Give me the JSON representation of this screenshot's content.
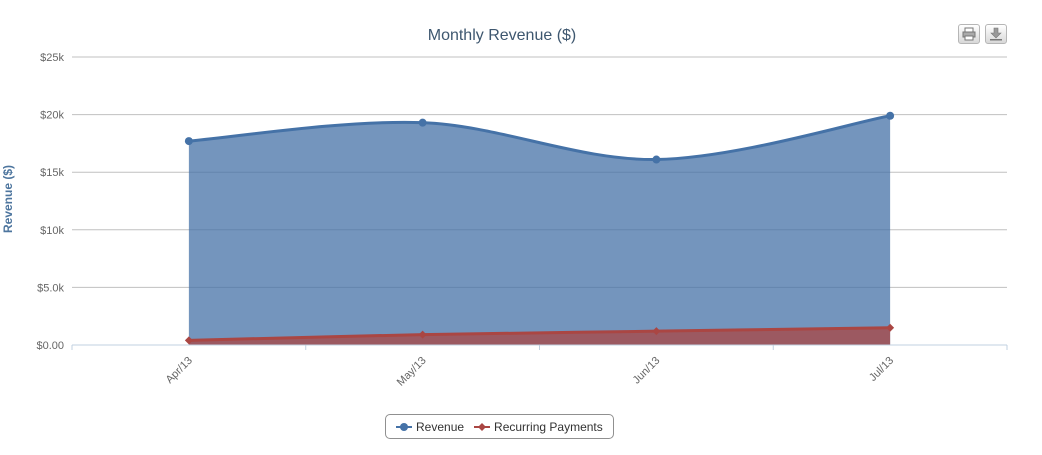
{
  "chart_data": {
    "type": "area",
    "title": "Monthly Revenue ($)",
    "xlabel": "",
    "ylabel": "Revenue ($)",
    "categories": [
      "Apr/13",
      "May/13",
      "Jun/13",
      "Jul/13"
    ],
    "ylim": [
      0,
      25000
    ],
    "yticks": [
      0,
      5000,
      10000,
      15000,
      20000,
      25000
    ],
    "ytick_labels": [
      "$0.00",
      "$5.0k",
      "$10k",
      "$15k",
      "$20k",
      "$25k"
    ],
    "grid": true,
    "legend_position": "bottom-center",
    "series": [
      {
        "name": "Revenue",
        "values": [
          17700,
          19300,
          16100,
          19900
        ],
        "color": "#4572A7",
        "marker": "circle"
      },
      {
        "name": "Recurring Payments",
        "values": [
          400,
          900,
          1200,
          1500
        ],
        "color": "#AA4643",
        "marker": "diamond"
      }
    ]
  },
  "toolbar": {
    "print_icon": "print-icon",
    "download_icon": "download-icon"
  }
}
